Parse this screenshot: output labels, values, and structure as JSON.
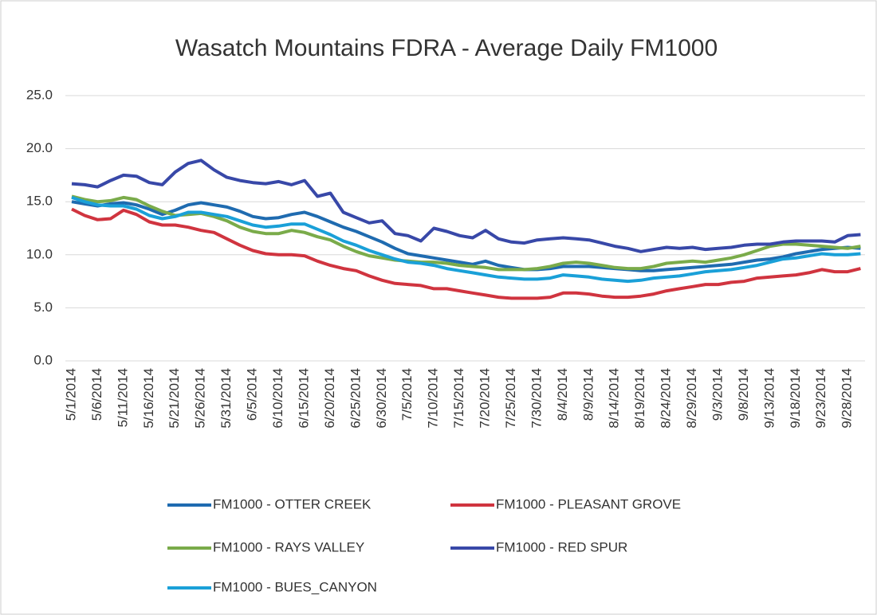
{
  "chart_data": {
    "type": "line",
    "title": "Wasatch Mountains FDRA - Average Daily FM1000",
    "categories": [
      "5/1/2014",
      null,
      "5/6/2014",
      null,
      "5/11/2014",
      null,
      "5/16/2014",
      null,
      "5/21/2014",
      null,
      "5/26/2014",
      null,
      "5/31/2014",
      null,
      "6/5/2014",
      null,
      "6/10/2014",
      null,
      "6/15/2014",
      null,
      "6/20/2014",
      null,
      "6/25/2014",
      null,
      "6/30/2014",
      null,
      "7/5/2014",
      null,
      "7/10/2014",
      null,
      "7/15/2014",
      null,
      "7/20/2014",
      null,
      "7/25/2014",
      null,
      "7/30/2014",
      null,
      "8/4/2014",
      null,
      "8/9/2014",
      null,
      "8/14/2014",
      null,
      "8/19/2014",
      null,
      "8/24/2014",
      null,
      "8/29/2014",
      null,
      "9/3/2014",
      null,
      "9/8/2014",
      null,
      "9/13/2014",
      null,
      "9/18/2014",
      null,
      "9/23/2014",
      null,
      "9/28/2014",
      null
    ],
    "series": [
      {
        "name": "FM1000 - OTTER CREEK",
        "color": "#1f6bb0",
        "values": [
          15.0,
          14.8,
          14.6,
          14.8,
          14.9,
          14.7,
          14.3,
          13.8,
          14.2,
          14.7,
          14.9,
          14.7,
          14.5,
          14.1,
          13.6,
          13.4,
          13.5,
          13.8,
          14.0,
          13.6,
          13.1,
          12.6,
          12.2,
          11.7,
          11.2,
          10.6,
          10.1,
          9.9,
          9.7,
          9.5,
          9.3,
          9.1,
          9.4,
          9.0,
          8.8,
          8.6,
          8.6,
          8.7,
          8.9,
          8.9,
          8.9,
          8.8,
          8.7,
          8.6,
          8.5,
          8.5,
          8.6,
          8.7,
          8.8,
          8.9,
          9.0,
          9.1,
          9.3,
          9.5,
          9.6,
          9.8,
          10.1,
          10.3,
          10.5,
          10.6,
          10.7,
          10.6
        ]
      },
      {
        "name": "FM1000 - PLEASANT GROVE",
        "color": "#d0343f",
        "values": [
          14.3,
          13.7,
          13.3,
          13.4,
          14.2,
          13.8,
          13.1,
          12.8,
          12.8,
          12.6,
          12.3,
          12.1,
          11.5,
          10.9,
          10.4,
          10.1,
          10.0,
          10.0,
          9.9,
          9.4,
          9.0,
          8.7,
          8.5,
          8.0,
          7.6,
          7.3,
          7.2,
          7.1,
          6.8,
          6.8,
          6.6,
          6.4,
          6.2,
          6.0,
          5.9,
          5.9,
          5.9,
          6.0,
          6.4,
          6.4,
          6.3,
          6.1,
          6.0,
          6.0,
          6.1,
          6.3,
          6.6,
          6.8,
          7.0,
          7.2,
          7.2,
          7.4,
          7.5,
          7.8,
          7.9,
          8.0,
          8.1,
          8.3,
          8.6,
          8.4,
          8.4,
          8.7
        ]
      },
      {
        "name": "FM1000 - RAYS VALLEY",
        "color": "#7aab4a",
        "values": [
          15.5,
          15.2,
          15.0,
          15.1,
          15.4,
          15.2,
          14.6,
          14.1,
          13.7,
          13.8,
          13.9,
          13.6,
          13.2,
          12.6,
          12.2,
          12.0,
          12.0,
          12.3,
          12.1,
          11.7,
          11.4,
          10.8,
          10.3,
          9.9,
          9.7,
          9.5,
          9.4,
          9.3,
          9.3,
          9.2,
          9.0,
          8.9,
          8.8,
          8.6,
          8.6,
          8.6,
          8.7,
          8.9,
          9.2,
          9.3,
          9.2,
          9.0,
          8.8,
          8.7,
          8.7,
          8.9,
          9.2,
          9.3,
          9.4,
          9.3,
          9.5,
          9.7,
          10.0,
          10.4,
          10.8,
          11.0,
          11.0,
          10.9,
          10.8,
          10.7,
          10.6,
          10.8
        ]
      },
      {
        "name": "FM1000 - RED SPUR",
        "color": "#3848a8",
        "values": [
          16.7,
          16.6,
          16.4,
          17.0,
          17.5,
          17.4,
          16.8,
          16.6,
          17.8,
          18.6,
          18.9,
          18.0,
          17.3,
          17.0,
          16.8,
          16.7,
          16.9,
          16.6,
          17.0,
          15.5,
          15.8,
          14.0,
          13.5,
          13.0,
          13.2,
          12.0,
          11.8,
          11.3,
          12.5,
          12.2,
          11.8,
          11.6,
          12.3,
          11.5,
          11.2,
          11.1,
          11.4,
          11.5,
          11.6,
          11.5,
          11.4,
          11.1,
          10.8,
          10.6,
          10.3,
          10.5,
          10.7,
          10.6,
          10.7,
          10.5,
          10.6,
          10.7,
          10.9,
          11.0,
          11.0,
          11.2,
          11.3,
          11.3,
          11.3,
          11.2,
          11.8,
          11.9
        ]
      },
      {
        "name": "FM1000 - BUES_CANYON",
        "color": "#1aa0d8",
        "values": [
          15.4,
          15.0,
          14.7,
          14.6,
          14.6,
          14.3,
          13.7,
          13.4,
          13.6,
          14.0,
          14.0,
          13.8,
          13.6,
          13.2,
          12.8,
          12.6,
          12.7,
          12.9,
          12.9,
          12.4,
          11.9,
          11.3,
          10.9,
          10.4,
          10.0,
          9.6,
          9.3,
          9.2,
          9.0,
          8.7,
          8.5,
          8.3,
          8.1,
          7.9,
          7.8,
          7.7,
          7.7,
          7.8,
          8.1,
          8.0,
          7.9,
          7.7,
          7.6,
          7.5,
          7.6,
          7.8,
          7.9,
          8.0,
          8.2,
          8.4,
          8.5,
          8.6,
          8.8,
          9.0,
          9.3,
          9.6,
          9.7,
          9.9,
          10.1,
          10.0,
          10.0,
          10.1
        ]
      }
    ],
    "ylim": [
      0,
      25
    ],
    "yticks": [
      {
        "value": 0,
        "label": "0.0"
      },
      {
        "value": 5,
        "label": "5.0"
      },
      {
        "value": 10,
        "label": "10.0"
      },
      {
        "value": 15,
        "label": "15.0"
      },
      {
        "value": 20,
        "label": "20.0"
      },
      {
        "value": 25,
        "label": "25.0"
      }
    ],
    "grid": true,
    "legend": "bottom"
  }
}
